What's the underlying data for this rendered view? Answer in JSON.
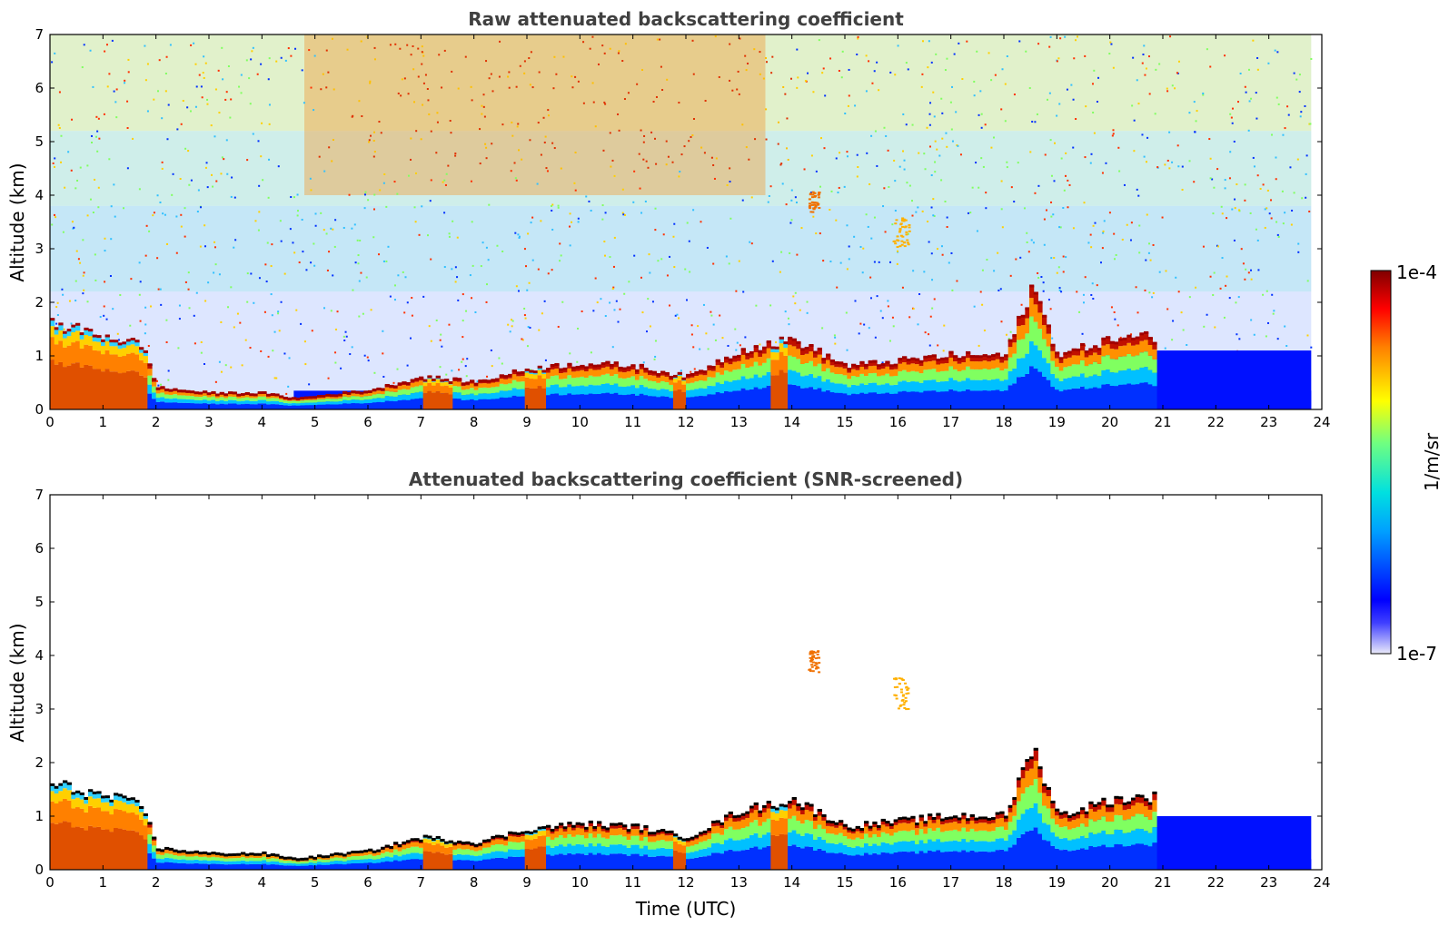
{
  "chart_data": [
    {
      "type": "heatmap",
      "title": "Raw attenuated backscattering coefficient",
      "xlabel": "",
      "ylabel": "Altitude (km)",
      "xlim": [
        0,
        24
      ],
      "ylim": [
        0,
        7
      ],
      "xticks": [
        "0",
        "1",
        "2",
        "3",
        "4",
        "5",
        "6",
        "7",
        "8",
        "9",
        "10",
        "11",
        "12",
        "13",
        "14",
        "15",
        "16",
        "17",
        "18",
        "19",
        "20",
        "21",
        "22",
        "23",
        "24"
      ],
      "yticks": [
        "0",
        "1",
        "2",
        "3",
        "4",
        "5",
        "6",
        "7"
      ],
      "data_end_time": 23.8,
      "layers": [
        {
          "feature": "boundary layer",
          "x": [
            0,
            1.7,
            2.0,
            3.0,
            4.0,
            4.6,
            5.5,
            6.0,
            7.0,
            8.0,
            9.0,
            10.0,
            11.0,
            12.0,
            13.0,
            14.0,
            15.0,
            16.0,
            17.0,
            18.0,
            18.5,
            19.0,
            19.5,
            20.0,
            20.7
          ],
          "top": [
            1.6,
            1.2,
            0.4,
            0.3,
            0.3,
            0.2,
            0.3,
            0.35,
            0.6,
            0.5,
            0.75,
            0.85,
            0.8,
            0.6,
            1.1,
            1.3,
            0.8,
            0.9,
            1.0,
            1.0,
            2.3,
            1.0,
            1.15,
            1.3,
            1.35
          ]
        },
        {
          "feature": "elevated aerosol layer",
          "x_range": [
            14.3,
            14.5
          ],
          "y_range": [
            3.7,
            4.1
          ]
        },
        {
          "feature": "elevated aerosol layer",
          "x_range": [
            15.9,
            16.2
          ],
          "y_range": [
            3.0,
            3.6
          ]
        }
      ],
      "colorbar": {
        "label": "1/m/sr",
        "min_label": "1e-7",
        "max_label": "1e-4",
        "scale": "log",
        "vmin": 1e-07,
        "vmax": 0.0001
      }
    },
    {
      "type": "heatmap",
      "title": "Attenuated backscattering coefficient (SNR-screened)",
      "xlabel": "Time (UTC)",
      "ylabel": "Altitude (km)",
      "xlim": [
        0,
        24
      ],
      "ylim": [
        0,
        7
      ],
      "xticks": [
        "0",
        "1",
        "2",
        "3",
        "4",
        "5",
        "6",
        "7",
        "8",
        "9",
        "10",
        "11",
        "12",
        "13",
        "14",
        "15",
        "16",
        "17",
        "18",
        "19",
        "20",
        "21",
        "22",
        "23",
        "24"
      ],
      "yticks": [
        "0",
        "1",
        "2",
        "3",
        "4",
        "5",
        "6",
        "7"
      ],
      "data_end_time": 23.8,
      "layers": [
        {
          "feature": "boundary layer",
          "x": [
            0,
            1.7,
            2.0,
            3.0,
            4.0,
            4.6,
            5.5,
            6.0,
            7.0,
            8.0,
            9.0,
            10.0,
            11.0,
            12.0,
            13.0,
            14.0,
            15.0,
            16.0,
            17.0,
            18.0,
            18.5,
            19.0,
            19.5,
            20.0,
            20.7
          ],
          "top": [
            1.6,
            1.2,
            0.4,
            0.3,
            0.3,
            0.2,
            0.3,
            0.35,
            0.6,
            0.5,
            0.75,
            0.85,
            0.8,
            0.6,
            1.1,
            1.3,
            0.8,
            0.9,
            1.0,
            1.0,
            2.3,
            1.0,
            1.15,
            1.3,
            1.35
          ]
        },
        {
          "feature": "elevated aerosol layer",
          "x_range": [
            14.3,
            14.5
          ],
          "y_range": [
            3.7,
            4.1
          ]
        },
        {
          "feature": "elevated aerosol layer",
          "x_range": [
            15.9,
            16.2
          ],
          "y_range": [
            3.0,
            3.6
          ]
        }
      ],
      "colorbar": {
        "label": "1/m/sr",
        "min_label": "1e-7",
        "max_label": "1e-4",
        "scale": "log",
        "vmin": 1e-07,
        "vmax": 0.0001
      }
    }
  ]
}
